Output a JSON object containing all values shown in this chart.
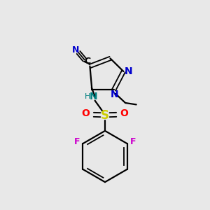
{
  "bg_color": "#e8e8e8",
  "bond_color": "#000000",
  "N_color": "#0000cc",
  "N_NH_color": "#008080",
  "O_color": "#ff0000",
  "F_color": "#cc00cc",
  "S_color": "#cccc00",
  "figsize": [
    3.0,
    3.0
  ],
  "dpi": 100,
  "xlim": [
    0,
    10
  ],
  "ylim": [
    0,
    10
  ]
}
